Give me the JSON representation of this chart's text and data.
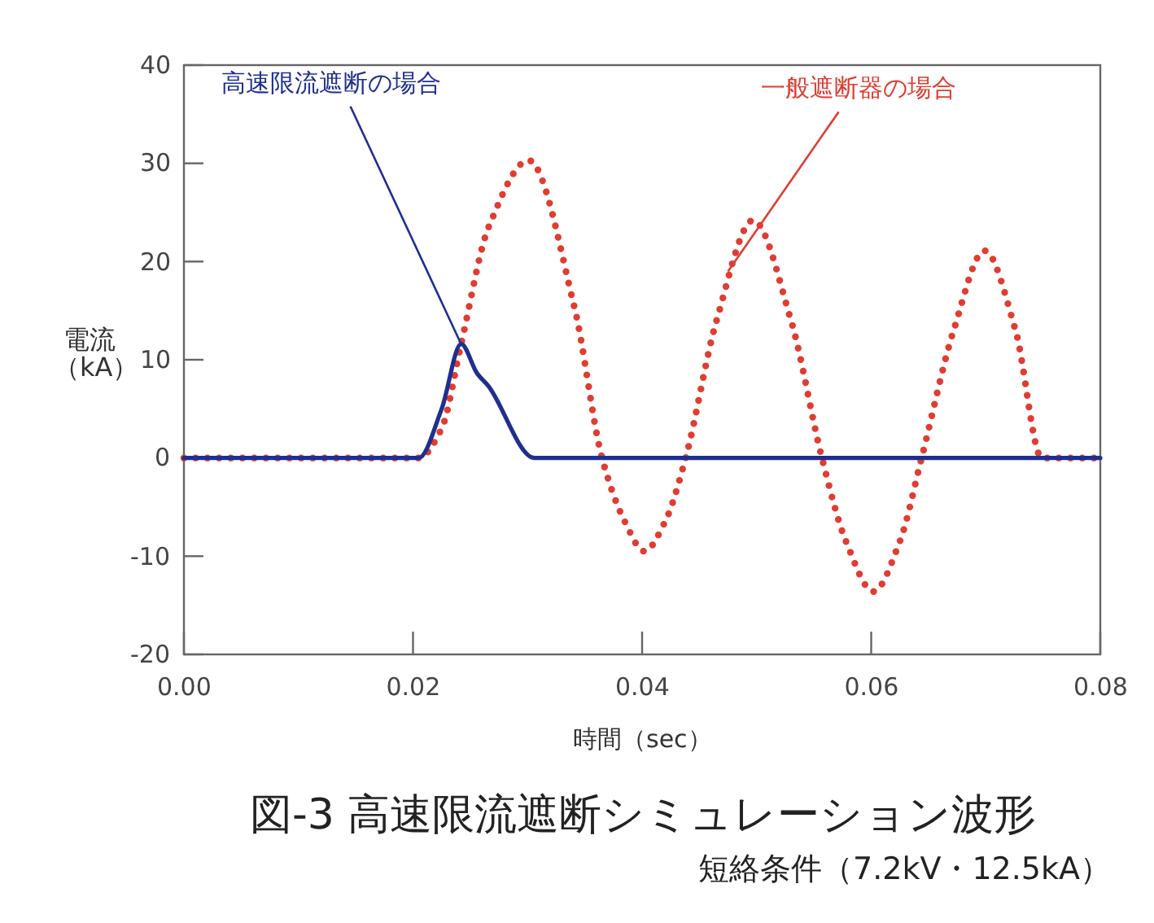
{
  "chart_data": {
    "type": "line",
    "title": "図-3 高速限流遮断シミュレーション波形",
    "subtitle": "短絡条件（7.2kV・12.5kA）",
    "xlabel": "時間（sec）",
    "ylabel": "電流（kA）",
    "xlim": [
      0,
      0.08
    ],
    "ylim": [
      -20,
      40
    ],
    "xticks": [
      {
        "value": 0,
        "label": "0.00"
      },
      {
        "value": 0.02,
        "label": "0.02"
      },
      {
        "value": 0.04,
        "label": "0.04"
      },
      {
        "value": 0.06,
        "label": "0.06"
      },
      {
        "value": 0.08,
        "label": "0.08"
      }
    ],
    "yticks": [
      -20,
      -10,
      0,
      10,
      20,
      30,
      40
    ],
    "grid": false,
    "series": [
      {
        "color": "#e03c31",
        "line_style": "dotted",
        "x": [
          0,
          0.0205,
          0.0225,
          0.0242,
          0.0266,
          0.0301,
          0.0341,
          0.0365,
          0.0385,
          0.0402,
          0.042,
          0.0438,
          0.0465,
          0.0497,
          0.053,
          0.0557,
          0.0578,
          0.0602,
          0.0625,
          0.0644,
          0.0672,
          0.0699,
          0.0726,
          0.0749,
          0.08
        ],
        "values": [
          0,
          0,
          3,
          11.6,
          23.5,
          30.3,
          15.3,
          0,
          -6.5,
          -9.5,
          -6.5,
          0,
          14,
          24.2,
          14,
          0,
          -8.5,
          -13.6,
          -8.5,
          0,
          13,
          21.1,
          13,
          0,
          0
        ]
      },
      {
        "color": "#1f2f8f",
        "line_style": "solid",
        "x": [
          0,
          0.0205,
          0.0225,
          0.0242,
          0.0256,
          0.0266,
          0.0306,
          0.08
        ],
        "values": [
          0,
          0,
          5,
          11.6,
          8.6,
          7.3,
          0,
          0
        ]
      }
    ],
    "annotations": [
      {
        "text": "高速限流遮断の場合",
        "x": 0.0242,
        "y": 11.6
      },
      {
        "text": "一般遮断器の場合",
        "x": 0.0475,
        "y": 19
      }
    ]
  }
}
